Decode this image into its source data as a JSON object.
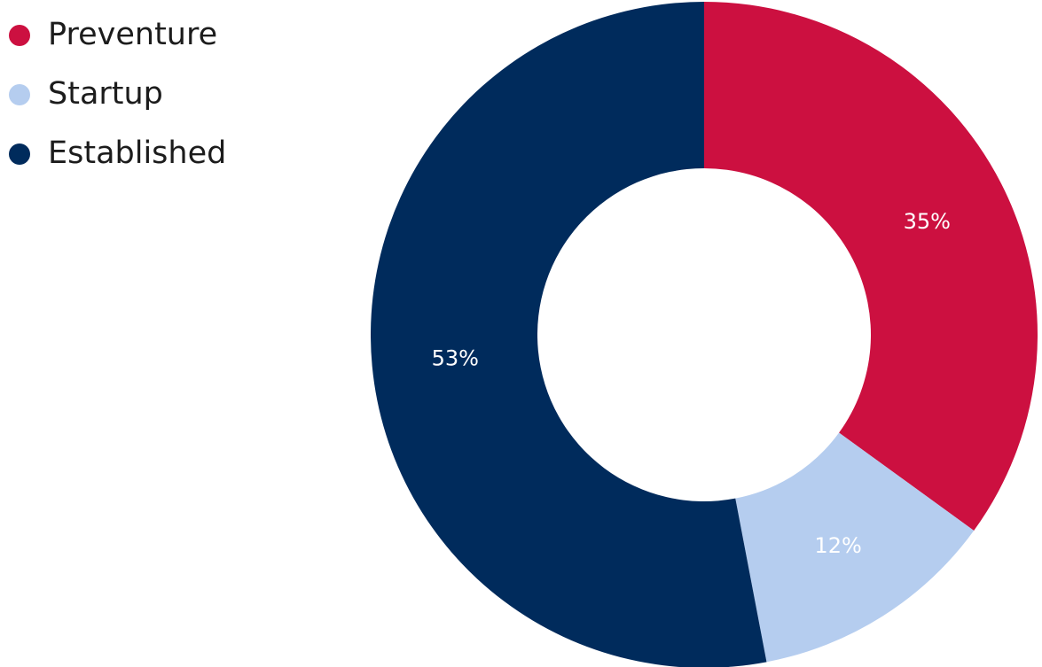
{
  "chart_data": {
    "type": "pie",
    "variant": "donut",
    "title": "",
    "categories": [
      "Preventure",
      "Startup",
      "Established"
    ],
    "values": [
      35,
      12,
      53
    ],
    "value_labels": [
      "35%",
      "12%",
      "53%"
    ],
    "colors": [
      "#cc1040",
      "#b5cdef",
      "#002b5c"
    ],
    "start_angle_deg": 0,
    "direction": "clockwise",
    "legend": {
      "position": "top-left",
      "entries": [
        "Preventure",
        "Startup",
        "Established"
      ]
    }
  }
}
